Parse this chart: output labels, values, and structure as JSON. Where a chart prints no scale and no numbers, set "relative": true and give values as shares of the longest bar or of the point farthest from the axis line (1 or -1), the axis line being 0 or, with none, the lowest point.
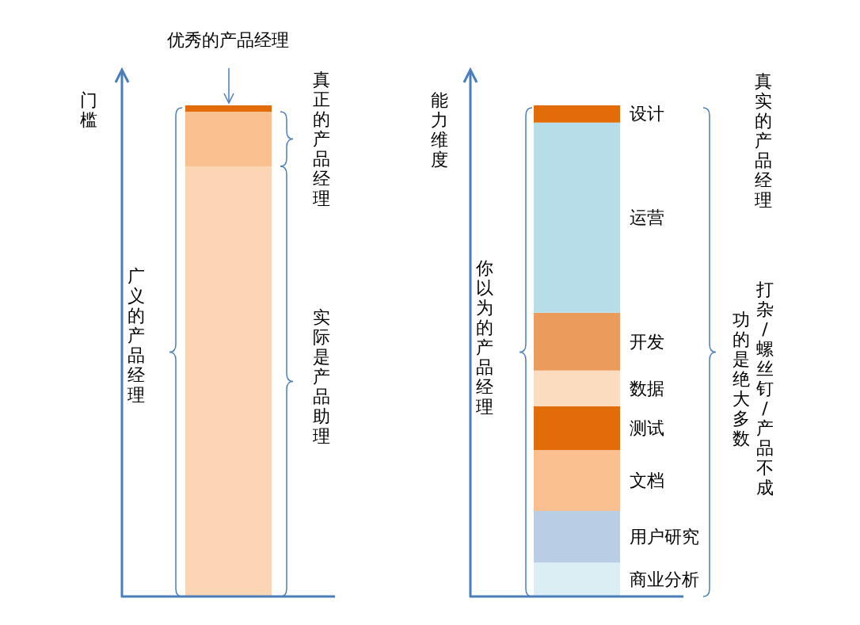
{
  "chart_data": [
    {
      "type": "bar",
      "ylabel": "门槛",
      "categories": [
        null
      ],
      "stacked": true,
      "relative": true,
      "series": [
        {
          "color": "#fcd5b5",
          "values": [
            0.876
          ]
        },
        {
          "color": "#fac090",
          "values": [
            0.111
          ]
        },
        {
          "color": "#e36c0a",
          "values": [
            0.013
          ]
        }
      ],
      "annotations": [
        "优秀的产品经理",
        "真正的产品经理",
        "实际是产品助理",
        "广义的产品经理"
      ]
    },
    {
      "type": "bar",
      "ylabel": "能力维度",
      "categories": [
        null
      ],
      "stacked": true,
      "relative": true,
      "series": [
        {
          "name": "商业分析",
          "color": "#dbeef4",
          "values": [
            0.069
          ]
        },
        {
          "name": "用户研究",
          "color": "#b9cde5",
          "values": [
            0.105
          ]
        },
        {
          "name": "文档",
          "color": "#fac090",
          "values": [
            0.124
          ]
        },
        {
          "name": "测试",
          "color": "#e36c0a",
          "values": [
            0.089
          ]
        },
        {
          "name": "数据",
          "color": "#fbdcbf",
          "values": [
            0.073
          ]
        },
        {
          "name": "开发",
          "color": "#eb9c5d",
          "values": [
            0.118
          ]
        },
        {
          "name": "运营",
          "color": "#b7dee8",
          "values": [
            0.387
          ]
        },
        {
          "name": "设计",
          "color": "#e36c0a",
          "values": [
            0.035
          ]
        }
      ],
      "annotations": [
        "你以为的产品经理",
        "真实的产品经理",
        "打杂/螺丝钉/产品不成",
        "功的是绝大多数"
      ]
    }
  ]
}
